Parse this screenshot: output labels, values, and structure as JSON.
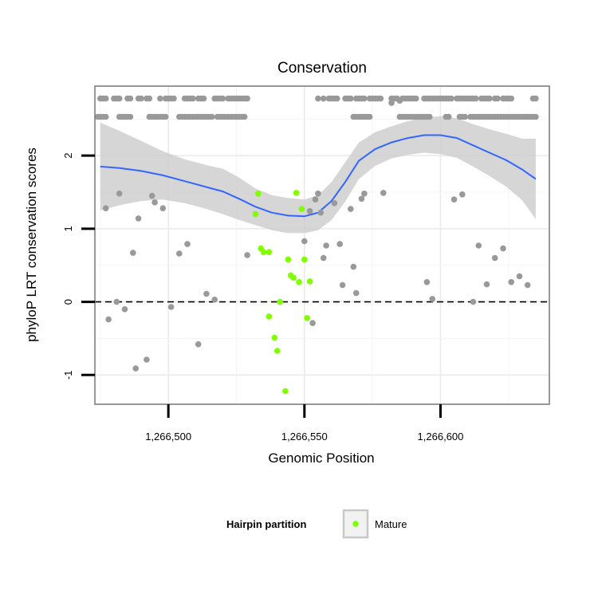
{
  "chart_data": {
    "type": "scatter",
    "title": "Conservation",
    "xlabel": "Genomic Position",
    "ylabel": "phyloP LRT conservation scores",
    "xlim": [
      1266473,
      1266640
    ],
    "ylim": [
      -1.4,
      2.95
    ],
    "x_ticks": [
      1266500,
      1266550,
      1266600
    ],
    "x_tick_labels": [
      "1,266,500",
      "1,266,550",
      "1,266,600"
    ],
    "y_ticks": [
      -1,
      0,
      1,
      2
    ],
    "y_tick_labels": [
      "-1",
      "0",
      "1",
      "2"
    ],
    "grid": true,
    "reference_line": {
      "y": 0,
      "style": "dashed"
    },
    "legend": {
      "title": "Hairpin partition",
      "placement": "bottom",
      "entries": [
        {
          "name": "Mature",
          "color": "#7fff00"
        }
      ]
    },
    "colors": {
      "other": "#999999",
      "mature": "#7fff00",
      "smooth": "#3366ff",
      "band": "#cccccc"
    },
    "series": [
      {
        "role": "other",
        "points": [
          [
            1266475,
            2.78
          ],
          [
            1266476,
            2.78
          ],
          [
            1266477,
            2.78
          ],
          [
            1266480,
            2.78
          ],
          [
            1266481,
            2.78
          ],
          [
            1266482,
            2.78
          ],
          [
            1266485,
            2.78
          ],
          [
            1266486,
            2.78
          ],
          [
            1266489,
            2.78
          ],
          [
            1266490,
            2.78
          ],
          [
            1266492,
            2.78
          ],
          [
            1266493,
            2.78
          ],
          [
            1266497,
            2.78
          ],
          [
            1266499,
            2.78
          ],
          [
            1266500,
            2.78
          ],
          [
            1266501,
            2.78
          ],
          [
            1266502,
            2.78
          ],
          [
            1266506,
            2.78
          ],
          [
            1266507,
            2.78
          ],
          [
            1266508,
            2.78
          ],
          [
            1266509,
            2.78
          ],
          [
            1266511,
            2.78
          ],
          [
            1266512,
            2.78
          ],
          [
            1266513,
            2.78
          ],
          [
            1266517,
            2.78
          ],
          [
            1266518,
            2.78
          ],
          [
            1266519,
            2.78
          ],
          [
            1266520,
            2.78
          ],
          [
            1266522,
            2.78
          ],
          [
            1266523,
            2.78
          ],
          [
            1266524,
            2.78
          ],
          [
            1266525,
            2.78
          ],
          [
            1266526,
            2.78
          ],
          [
            1266527,
            2.78
          ],
          [
            1266528,
            2.78
          ],
          [
            1266529,
            2.78
          ],
          [
            1266474,
            2.53
          ],
          [
            1266475,
            2.53
          ],
          [
            1266476,
            2.53
          ],
          [
            1266477,
            2.53
          ],
          [
            1266482,
            2.53
          ],
          [
            1266483,
            2.53
          ],
          [
            1266484,
            2.53
          ],
          [
            1266485,
            2.53
          ],
          [
            1266486,
            2.53
          ],
          [
            1266493,
            2.53
          ],
          [
            1266494,
            2.53
          ],
          [
            1266495,
            2.53
          ],
          [
            1266496,
            2.53
          ],
          [
            1266497,
            2.53
          ],
          [
            1266498,
            2.53
          ],
          [
            1266499,
            2.53
          ],
          [
            1266504,
            2.53
          ],
          [
            1266505,
            2.53
          ],
          [
            1266506,
            2.53
          ],
          [
            1266507,
            2.53
          ],
          [
            1266508,
            2.53
          ],
          [
            1266509,
            2.53
          ],
          [
            1266510,
            2.53
          ],
          [
            1266511,
            2.53
          ],
          [
            1266512,
            2.53
          ],
          [
            1266513,
            2.53
          ],
          [
            1266514,
            2.53
          ],
          [
            1266515,
            2.53
          ],
          [
            1266516,
            2.53
          ],
          [
            1266518,
            2.53
          ],
          [
            1266519,
            2.53
          ],
          [
            1266520,
            2.53
          ],
          [
            1266521,
            2.53
          ],
          [
            1266522,
            2.53
          ],
          [
            1266523,
            2.53
          ],
          [
            1266524,
            2.53
          ],
          [
            1266525,
            2.53
          ],
          [
            1266526,
            2.53
          ],
          [
            1266527,
            2.53
          ],
          [
            1266528,
            2.53
          ],
          [
            1266555,
            2.78
          ],
          [
            1266557,
            2.78
          ],
          [
            1266559,
            2.78
          ],
          [
            1266560,
            2.78
          ],
          [
            1266561,
            2.78
          ],
          [
            1266562,
            2.78
          ],
          [
            1266565,
            2.78
          ],
          [
            1266566,
            2.78
          ],
          [
            1266567,
            2.78
          ],
          [
            1266569,
            2.78
          ],
          [
            1266570,
            2.78
          ],
          [
            1266571,
            2.78
          ],
          [
            1266572,
            2.78
          ],
          [
            1266574,
            2.78
          ],
          [
            1266575,
            2.78
          ],
          [
            1266576,
            2.78
          ],
          [
            1266577,
            2.78
          ],
          [
            1266578,
            2.78
          ],
          [
            1266582,
            2.78
          ],
          [
            1266583,
            2.78
          ],
          [
            1266584,
            2.78
          ],
          [
            1266586,
            2.78
          ],
          [
            1266587,
            2.78
          ],
          [
            1266588,
            2.78
          ],
          [
            1266589,
            2.78
          ],
          [
            1266590,
            2.78
          ],
          [
            1266591,
            2.78
          ],
          [
            1266594,
            2.78
          ],
          [
            1266595,
            2.78
          ],
          [
            1266596,
            2.78
          ],
          [
            1266597,
            2.78
          ],
          [
            1266598,
            2.78
          ],
          [
            1266599,
            2.78
          ],
          [
            1266600,
            2.78
          ],
          [
            1266601,
            2.78
          ],
          [
            1266602,
            2.78
          ],
          [
            1266603,
            2.78
          ],
          [
            1266604,
            2.78
          ],
          [
            1266606,
            2.78
          ],
          [
            1266607,
            2.78
          ],
          [
            1266608,
            2.78
          ],
          [
            1266609,
            2.78
          ],
          [
            1266610,
            2.78
          ],
          [
            1266611,
            2.78
          ],
          [
            1266612,
            2.78
          ],
          [
            1266613,
            2.78
          ],
          [
            1266615,
            2.78
          ],
          [
            1266616,
            2.78
          ],
          [
            1266617,
            2.78
          ],
          [
            1266618,
            2.78
          ],
          [
            1266620,
            2.78
          ],
          [
            1266621,
            2.78
          ],
          [
            1266623,
            2.78
          ],
          [
            1266624,
            2.78
          ],
          [
            1266625,
            2.78
          ],
          [
            1266626,
            2.78
          ],
          [
            1266634,
            2.78
          ],
          [
            1266635,
            2.78
          ],
          [
            1266582,
            2.72
          ],
          [
            1266585,
            2.75
          ],
          [
            1266568,
            2.53
          ],
          [
            1266569,
            2.53
          ],
          [
            1266570,
            2.53
          ],
          [
            1266571,
            2.53
          ],
          [
            1266572,
            2.53
          ],
          [
            1266573,
            2.53
          ],
          [
            1266574,
            2.53
          ],
          [
            1266585,
            2.53
          ],
          [
            1266586,
            2.53
          ],
          [
            1266587,
            2.53
          ],
          [
            1266588,
            2.53
          ],
          [
            1266589,
            2.53
          ],
          [
            1266590,
            2.53
          ],
          [
            1266591,
            2.53
          ],
          [
            1266592,
            2.53
          ],
          [
            1266593,
            2.53
          ],
          [
            1266594,
            2.53
          ],
          [
            1266595,
            2.53
          ],
          [
            1266596,
            2.53
          ],
          [
            1266602,
            2.53
          ],
          [
            1266603,
            2.53
          ],
          [
            1266607,
            2.53
          ],
          [
            1266608,
            2.53
          ],
          [
            1266609,
            2.53
          ],
          [
            1266611,
            2.53
          ],
          [
            1266612,
            2.53
          ],
          [
            1266613,
            2.53
          ],
          [
            1266614,
            2.53
          ],
          [
            1266615,
            2.53
          ],
          [
            1266616,
            2.53
          ],
          [
            1266617,
            2.53
          ],
          [
            1266618,
            2.53
          ],
          [
            1266619,
            2.53
          ],
          [
            1266620,
            2.53
          ],
          [
            1266621,
            2.53
          ],
          [
            1266622,
            2.53
          ],
          [
            1266623,
            2.53
          ],
          [
            1266624,
            2.53
          ],
          [
            1266625,
            2.53
          ],
          [
            1266626,
            2.53
          ],
          [
            1266627,
            2.53
          ],
          [
            1266628,
            2.53
          ],
          [
            1266629,
            2.53
          ],
          [
            1266630,
            2.53
          ],
          [
            1266631,
            2.53
          ],
          [
            1266632,
            2.53
          ],
          [
            1266633,
            2.53
          ],
          [
            1266634,
            2.53
          ],
          [
            1266635,
            2.53
          ],
          [
            1266477,
            1.28
          ],
          [
            1266481,
            0.0
          ],
          [
            1266482,
            1.48
          ],
          [
            1266478,
            -0.24
          ],
          [
            1266484,
            -0.1
          ],
          [
            1266487,
            0.67
          ],
          [
            1266488,
            -0.91
          ],
          [
            1266489,
            1.14
          ],
          [
            1266492,
            -0.79
          ],
          [
            1266494,
            1.45
          ],
          [
            1266495,
            1.36
          ],
          [
            1266498,
            1.28
          ],
          [
            1266501,
            -0.07
          ],
          [
            1266504,
            0.66
          ],
          [
            1266507,
            0.79
          ],
          [
            1266511,
            -0.58
          ],
          [
            1266514,
            0.11
          ],
          [
            1266517,
            0.03
          ],
          [
            1266529,
            0.64
          ],
          [
            1266553,
            -0.29
          ],
          [
            1266554,
            1.4
          ],
          [
            1266555,
            1.48
          ],
          [
            1266556,
            1.22
          ],
          [
            1266557,
            0.6
          ],
          [
            1266558,
            0.77
          ],
          [
            1266561,
            1.35
          ],
          [
            1266563,
            0.79
          ],
          [
            1266564,
            0.23
          ],
          [
            1266567,
            1.27
          ],
          [
            1266568,
            0.48
          ],
          [
            1266569,
            0.12
          ],
          [
            1266571,
            1.41
          ],
          [
            1266572,
            1.48
          ],
          [
            1266579,
            1.49
          ],
          [
            1266595,
            0.27
          ],
          [
            1266597,
            0.04
          ],
          [
            1266605,
            1.4
          ],
          [
            1266608,
            1.47
          ],
          [
            1266612,
            0.0
          ],
          [
            1266614,
            0.77
          ],
          [
            1266617,
            0.24
          ],
          [
            1266620,
            0.6
          ],
          [
            1266623,
            0.73
          ],
          [
            1266626,
            0.27
          ],
          [
            1266629,
            0.35
          ],
          [
            1266632,
            0.23
          ],
          [
            1266552,
            1.24
          ],
          [
            1266550,
            0.83
          ]
        ]
      },
      {
        "role": "mature",
        "name": "Mature",
        "points": [
          [
            1266532,
            1.2
          ],
          [
            1266533,
            1.48
          ],
          [
            1266534,
            0.73
          ],
          [
            1266535,
            0.68
          ],
          [
            1266537,
            0.68
          ],
          [
            1266537,
            -0.2
          ],
          [
            1266539,
            -0.49
          ],
          [
            1266540,
            -0.67
          ],
          [
            1266541,
            0.0
          ],
          [
            1266543,
            -1.22
          ],
          [
            1266544,
            0.58
          ],
          [
            1266545,
            0.36
          ],
          [
            1266546,
            0.33
          ],
          [
            1266547,
            1.49
          ],
          [
            1266548,
            0.27
          ],
          [
            1266549,
            1.27
          ],
          [
            1266550,
            0.58
          ],
          [
            1266551,
            -0.22
          ],
          [
            1266552,
            0.28
          ]
        ]
      }
    ],
    "smooth": {
      "x": [
        1266475,
        1266482,
        1266490,
        1266498,
        1266506,
        1266514,
        1266520,
        1266526,
        1266532,
        1266538,
        1266544,
        1266550,
        1266555,
        1266560,
        1266565,
        1266570,
        1266576,
        1266582,
        1266588,
        1266594,
        1266600,
        1266606,
        1266612,
        1266618,
        1266624,
        1266630,
        1266635
      ],
      "y": [
        1.85,
        1.83,
        1.79,
        1.73,
        1.65,
        1.57,
        1.51,
        1.41,
        1.3,
        1.22,
        1.18,
        1.17,
        1.22,
        1.38,
        1.64,
        1.93,
        2.09,
        2.18,
        2.24,
        2.28,
        2.28,
        2.24,
        2.14,
        2.04,
        1.94,
        1.81,
        1.68
      ],
      "lower": [
        1.25,
        1.32,
        1.38,
        1.4,
        1.35,
        1.27,
        1.2,
        1.12,
        1.05,
        0.98,
        0.94,
        0.94,
        0.98,
        1.12,
        1.37,
        1.68,
        1.86,
        1.96,
        2.01,
        2.04,
        2.02,
        1.97,
        1.85,
        1.72,
        1.58,
        1.39,
        1.13
      ],
      "upper": [
        2.45,
        2.34,
        2.2,
        2.06,
        1.95,
        1.87,
        1.82,
        1.7,
        1.55,
        1.46,
        1.42,
        1.4,
        1.46,
        1.64,
        1.91,
        2.18,
        2.32,
        2.4,
        2.47,
        2.52,
        2.54,
        2.51,
        2.43,
        2.36,
        2.3,
        2.23,
        2.23
      ]
    }
  }
}
